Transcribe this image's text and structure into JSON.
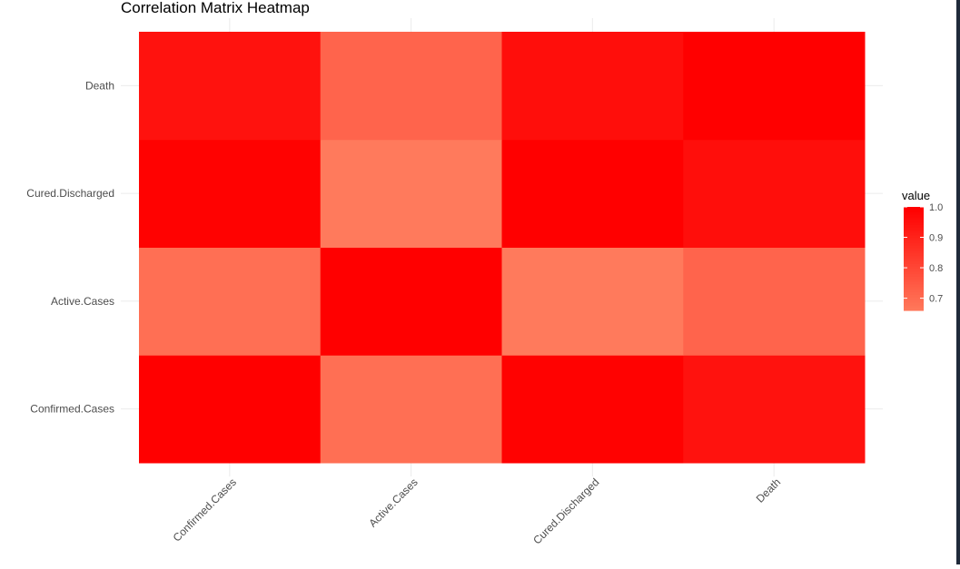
{
  "chart_data": {
    "type": "heatmap",
    "title": "Correlation Matrix Heatmap",
    "xlabel": "",
    "ylabel": "",
    "x_categories": [
      "Confirmed.Cases",
      "Active.Cases",
      "Cured.Discharged",
      "Death"
    ],
    "y_categories": [
      "Confirmed.Cases",
      "Active.Cases",
      "Cured.Discharged",
      "Death"
    ],
    "matrix": [
      [
        1.0,
        0.69,
        0.995,
        0.95
      ],
      [
        0.69,
        1.0,
        0.66,
        0.72
      ],
      [
        0.995,
        0.66,
        1.0,
        0.96
      ],
      [
        0.95,
        0.72,
        0.96,
        1.0
      ]
    ],
    "legend": {
      "title": "value",
      "ticks": [
        1.0,
        0.9,
        0.8,
        0.7
      ],
      "tick_labels": [
        "1.0",
        "0.9",
        "0.8",
        "0.7"
      ],
      "range": [
        0.66,
        1.0
      ],
      "placement": "right"
    },
    "color_low": "#ff7a5c",
    "color_high": "#ff0000",
    "grid": true
  },
  "frame": {
    "accent": "#1f2a3a"
  }
}
